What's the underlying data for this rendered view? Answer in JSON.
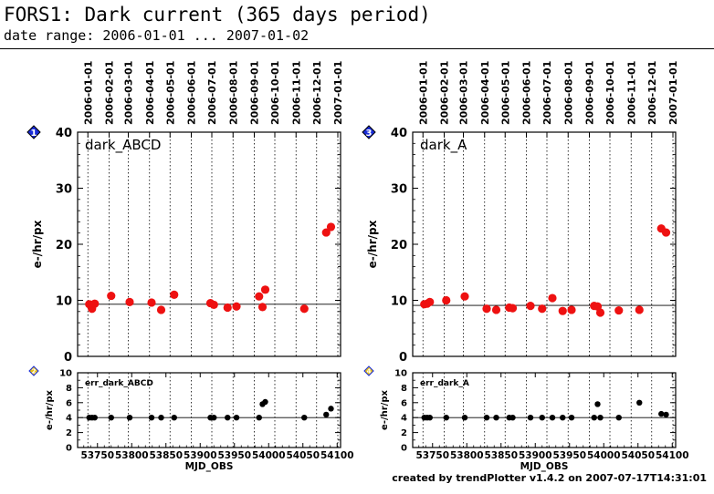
{
  "header": {
    "title": "FORS1: Dark current (365 days period)",
    "date_range": "date range: 2006-01-01 ... 2007-01-02"
  },
  "footer": "created by trendPlotter v1.4.2 on 2007-07-17T14:31:01",
  "colors": {
    "main_points": "#ee1111",
    "err_points": "#000000",
    "badge": "#1a2dd8",
    "badge_small": "#e8c21a"
  },
  "chart_data": [
    {
      "type": "scatter",
      "panel": "main",
      "badge": "1",
      "label": "dark_ABCD",
      "ylabel": "e-/hr/px",
      "xlabel": "",
      "xlim": [
        53721,
        54105
      ],
      "ylim": [
        0,
        40
      ],
      "yticks": [
        0,
        10,
        20,
        30,
        40
      ],
      "reference_line": 9.3,
      "date_ticks": {
        "labels": [
          "2006-01-01",
          "2006-02-01",
          "2006-03-01",
          "2006-04-01",
          "2006-05-01",
          "2006-06-01",
          "2006-07-01",
          "2006-08-01",
          "2006-09-01",
          "2006-10-01",
          "2006-11-01",
          "2006-12-01",
          "2007-01-01"
        ],
        "mjd": [
          53736,
          53767,
          53795,
          53826,
          53856,
          53887,
          53917,
          53948,
          53979,
          54009,
          54040,
          54070,
          54101
        ]
      },
      "x": [
        53738,
        53742,
        53746,
        53770,
        53797,
        53829,
        53843,
        53862,
        53915,
        53920,
        53940,
        53953,
        53986,
        53991,
        53995,
        54052,
        54084,
        54091
      ],
      "y": [
        9.3,
        8.5,
        9.4,
        10.8,
        9.7,
        9.6,
        8.3,
        11.0,
        9.5,
        9.2,
        8.7,
        8.9,
        10.7,
        8.8,
        11.9,
        8.5,
        22.1,
        23.1
      ]
    },
    {
      "type": "scatter",
      "panel": "error",
      "badge": "2",
      "label": "err_dark_ABCD",
      "ylabel": "e-/hr/px",
      "xlabel": "MJD_OBS",
      "xlim": [
        53721,
        54105
      ],
      "ylim": [
        0,
        10
      ],
      "yticks": [
        0,
        2,
        4,
        6,
        8,
        10
      ],
      "xticks": [
        53750,
        53800,
        53850,
        53900,
        53950,
        54000,
        54050,
        54100
      ],
      "reference_line": 4.0,
      "x": [
        53738,
        53742,
        53746,
        53770,
        53797,
        53829,
        53843,
        53862,
        53915,
        53920,
        53940,
        53953,
        53986,
        53991,
        53995,
        54052,
        54084,
        54091
      ],
      "y": [
        4.0,
        4.0,
        4.0,
        4.0,
        4.0,
        4.0,
        4.0,
        4.0,
        4.0,
        4.0,
        4.0,
        4.0,
        4.0,
        5.8,
        6.1,
        4.0,
        4.4,
        5.2
      ]
    },
    {
      "type": "scatter",
      "panel": "main",
      "badge": "3",
      "label": "dark_A",
      "ylabel": "e-/hr/px",
      "xlabel": "",
      "xlim": [
        53721,
        54105
      ],
      "ylim": [
        0,
        40
      ],
      "yticks": [
        0,
        10,
        20,
        30,
        40
      ],
      "reference_line": 9.1,
      "date_ticks": {
        "labels": [
          "2006-01-01",
          "2006-02-01",
          "2006-03-01",
          "2006-04-01",
          "2006-05-01",
          "2006-06-01",
          "2006-07-01",
          "2006-08-01",
          "2006-09-01",
          "2006-10-01",
          "2006-11-01",
          "2006-12-01",
          "2007-01-01"
        ],
        "mjd": [
          53736,
          53767,
          53795,
          53826,
          53856,
          53887,
          53917,
          53948,
          53979,
          54009,
          54040,
          54070,
          54101
        ]
      },
      "x": [
        53738,
        53742,
        53746,
        53770,
        53797,
        53829,
        53843,
        53862,
        53867,
        53893,
        53910,
        53925,
        53940,
        53953,
        53986,
        53991,
        53995,
        54022,
        54052,
        54084,
        54091
      ],
      "y": [
        9.3,
        9.4,
        9.7,
        10.0,
        10.7,
        8.5,
        8.3,
        8.7,
        8.6,
        9.0,
        8.5,
        10.4,
        8.1,
        8.3,
        9.0,
        8.9,
        7.8,
        8.2,
        8.3,
        22.8,
        22.1
      ]
    },
    {
      "type": "scatter",
      "panel": "error",
      "badge": "4",
      "label": "err_dark_A",
      "ylabel": "e-/hr/px",
      "xlabel": "MJD_OBS",
      "xlim": [
        53721,
        54105
      ],
      "ylim": [
        0,
        10
      ],
      "yticks": [
        0,
        2,
        4,
        6,
        8,
        10
      ],
      "xticks": [
        53750,
        53800,
        53850,
        53900,
        53950,
        54000,
        54050,
        54100
      ],
      "reference_line": 4.0,
      "x": [
        53738,
        53742,
        53746,
        53770,
        53797,
        53829,
        53843,
        53862,
        53867,
        53893,
        53910,
        53925,
        53940,
        53953,
        53986,
        53991,
        53995,
        54022,
        54052,
        54084,
        54091
      ],
      "y": [
        4.0,
        4.0,
        4.0,
        4.0,
        4.0,
        4.0,
        4.0,
        4.0,
        4.0,
        4.0,
        4.0,
        4.0,
        4.0,
        4.0,
        4.0,
        5.8,
        4.0,
        4.0,
        6.0,
        4.5,
        4.4
      ]
    }
  ]
}
